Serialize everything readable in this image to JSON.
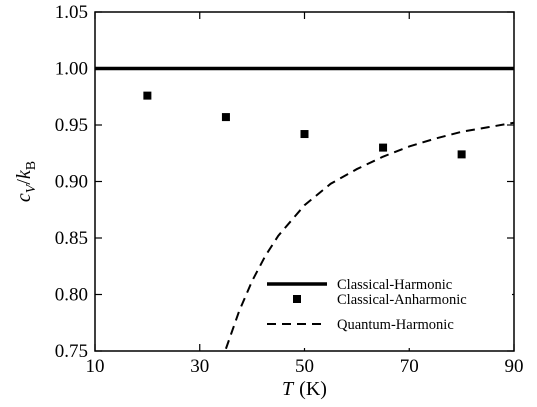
{
  "chart_data": {
    "type": "line",
    "xlabel": {
      "symbol": "T",
      "unit": "(K)"
    },
    "ylabel": {
      "symbol": "c",
      "sub1": "V",
      "slash": "/",
      "symbol2": "k",
      "sub2": "B"
    },
    "xlim": [
      10,
      90
    ],
    "ylim": [
      0.75,
      1.05
    ],
    "x_ticks": [
      10,
      30,
      50,
      70,
      90
    ],
    "x_tick_labels": [
      "10",
      "30",
      "50",
      "70",
      "90"
    ],
    "y_ticks": [
      0.75,
      0.8,
      0.85,
      0.9,
      0.95,
      1.0,
      1.05
    ],
    "y_tick_labels": [
      "0.75",
      "0.80",
      "0.85",
      "0.90",
      "0.95",
      "1.00",
      "1.05"
    ],
    "grid": false,
    "legend_position": "bottom-right",
    "series": [
      {
        "name": "Classical-Harmonic",
        "style": "solid-line",
        "x": [
          10,
          90
        ],
        "y": [
          1.0,
          1.0
        ]
      },
      {
        "name": "Classical-Anharmonic",
        "style": "square-markers",
        "x": [
          20,
          35,
          50,
          65,
          80
        ],
        "y": [
          0.976,
          0.957,
          0.942,
          0.93,
          0.924
        ]
      },
      {
        "name": "Quantum-Harmonic",
        "style": "dashed-line",
        "x": [
          35,
          37.5,
          40,
          42.5,
          45,
          50,
          55,
          60,
          65,
          70,
          75,
          80,
          85,
          90
        ],
        "y": [
          0.752,
          0.785,
          0.812,
          0.834,
          0.852,
          0.879,
          0.898,
          0.911,
          0.922,
          0.931,
          0.938,
          0.944,
          0.948,
          0.952
        ]
      }
    ]
  }
}
